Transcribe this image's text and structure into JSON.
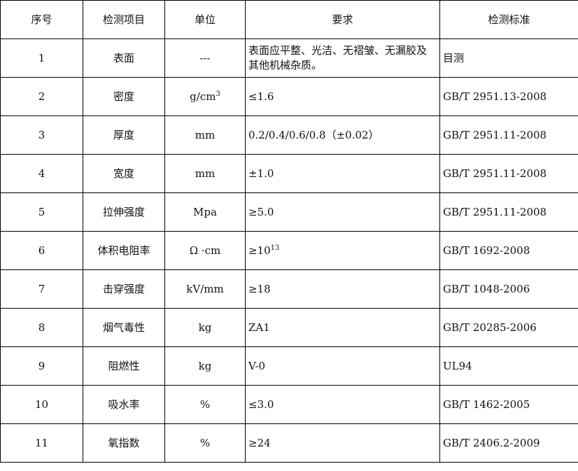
{
  "headers": [
    "序号",
    "检测项目",
    "单位",
    "要求",
    "检测标准"
  ],
  "rows": [
    {
      "no": "1",
      "item": "表面",
      "unit": "---",
      "unit_sup": "",
      "req": "表面应平整、光洁、无褶皱、无漏胶及其他机械杂质。",
      "req_sup": "",
      "std": "目测"
    },
    {
      "no": "2",
      "item": "密度",
      "unit": "g/cm",
      "unit_sup": "3",
      "req": "≤1.6",
      "req_sup": "",
      "std": "GB/T 2951.13-2008"
    },
    {
      "no": "3",
      "item": "厚度",
      "unit": "mm",
      "unit_sup": "",
      "req": "0.2/0.4/0.6/0.8（±0.02）",
      "req_sup": "",
      "std": "GB/T 2951.11-2008"
    },
    {
      "no": "4",
      "item": "宽度",
      "unit": "mm",
      "unit_sup": "",
      "req": "±1.0",
      "req_sup": "",
      "std": "GB/T 2951.11-2008"
    },
    {
      "no": "5",
      "item": "拉伸强度",
      "unit": "Mpa",
      "unit_sup": "",
      "req": "≥5.0",
      "req_sup": "",
      "std": "GB/T 2951.11-2008"
    },
    {
      "no": "6",
      "item": "体积电阻率",
      "unit": "Ω ·cm",
      "unit_sup": "",
      "req": "≥10",
      "req_sup": "13",
      "std": "GB/T 1692-2008"
    },
    {
      "no": "7",
      "item": "击穿强度",
      "unit": "kV/mm",
      "unit_sup": "",
      "req": "≥18",
      "req_sup": "",
      "std": "GB/T 1048-2006"
    },
    {
      "no": "8",
      "item": "烟气毒性",
      "unit": "kg",
      "unit_sup": "",
      "req": "ZA1",
      "req_sup": "",
      "std": "GB/T 20285-2006"
    },
    {
      "no": "9",
      "item": "阻燃性",
      "unit": "kg",
      "unit_sup": "",
      "req": "V-0",
      "req_sup": "",
      "std": "UL94"
    },
    {
      "no": "10",
      "item": "吸水率",
      "unit": "%",
      "unit_sup": "",
      "req": "≤3.0",
      "req_sup": "",
      "std": "GB/T 1462-2005"
    },
    {
      "no": "11",
      "item": "氧指数",
      "unit": "%",
      "unit_sup": "",
      "req": "≥24",
      "req_sup": "",
      "std": "GB/T 2406.2-2009"
    }
  ]
}
